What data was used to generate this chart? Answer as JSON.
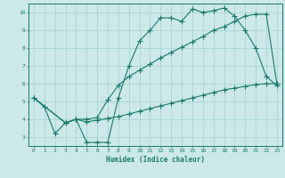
{
  "xlabel": "Humidex (Indice chaleur)",
  "xlim": [
    -0.5,
    23.5
  ],
  "ylim": [
    2.5,
    10.5
  ],
  "yticks": [
    3,
    4,
    5,
    6,
    7,
    8,
    9,
    10
  ],
  "xticks": [
    0,
    1,
    2,
    3,
    4,
    5,
    6,
    7,
    8,
    9,
    10,
    11,
    12,
    13,
    14,
    15,
    16,
    17,
    18,
    19,
    20,
    21,
    22,
    23
  ],
  "bg_color": "#cce8e8",
  "line_color": "#1a7a6e",
  "grid_color": "#aad4d4",
  "line1_x": [
    0,
    1,
    2,
    3,
    4,
    5,
    6,
    7,
    8,
    9,
    10,
    11,
    12,
    13,
    14,
    15,
    16,
    17,
    18,
    19,
    20,
    21,
    22,
    23
  ],
  "line1_y": [
    5.2,
    4.7,
    3.2,
    3.8,
    4.0,
    2.7,
    2.7,
    2.7,
    5.2,
    7.0,
    8.4,
    9.0,
    9.7,
    9.7,
    9.5,
    10.2,
    10.0,
    10.1,
    10.25,
    9.8,
    9.0,
    8.0,
    6.4,
    5.9
  ],
  "line2_x": [
    0,
    3,
    4,
    5,
    6,
    7,
    8,
    9,
    10,
    11,
    12,
    13,
    14,
    15,
    16,
    17,
    18,
    19,
    20,
    21,
    22,
    23
  ],
  "line2_y": [
    5.2,
    3.8,
    4.0,
    4.0,
    4.1,
    5.1,
    5.9,
    6.4,
    6.75,
    7.1,
    7.45,
    7.75,
    8.05,
    8.35,
    8.65,
    9.0,
    9.2,
    9.5,
    9.8,
    9.9,
    9.9,
    6.0
  ],
  "line3_x": [
    0,
    3,
    4,
    5,
    6,
    7,
    8,
    9,
    10,
    11,
    12,
    13,
    14,
    15,
    16,
    17,
    18,
    19,
    20,
    21,
    22,
    23
  ],
  "line3_y": [
    5.2,
    3.8,
    4.0,
    3.85,
    3.95,
    4.05,
    4.15,
    4.3,
    4.45,
    4.6,
    4.75,
    4.9,
    5.05,
    5.2,
    5.35,
    5.5,
    5.65,
    5.75,
    5.85,
    5.95,
    6.0,
    6.0
  ]
}
